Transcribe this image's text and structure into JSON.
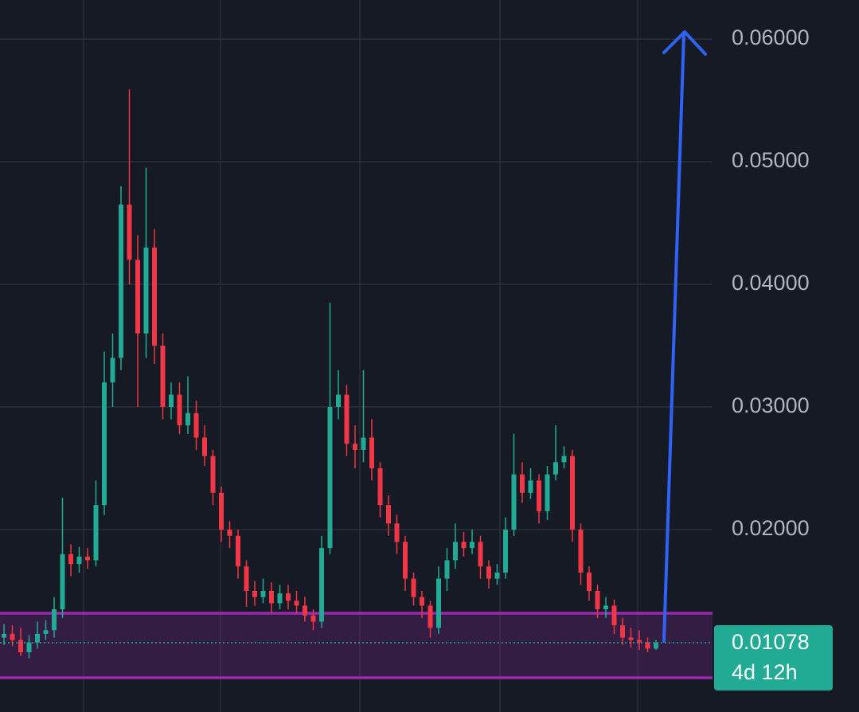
{
  "chart_data": {
    "type": "candlestick",
    "open": [
      0.0112,
      0.0115,
      0.011,
      0.01,
      0.0108,
      0.0115,
      0.0118,
      0.0135,
      0.018,
      0.0172,
      0.0178,
      0.0175,
      0.022,
      0.032,
      0.034,
      0.0465,
      0.042,
      0.036,
      0.043,
      0.035,
      0.03,
      0.031,
      0.0285,
      0.0295,
      0.0275,
      0.026,
      0.023,
      0.02,
      0.0195,
      0.017,
      0.015,
      0.0145,
      0.015,
      0.014,
      0.0148,
      0.0142,
      0.0138,
      0.013,
      0.0125,
      0.0185,
      0.03,
      0.031,
      0.027,
      0.0265,
      0.0275,
      0.025,
      0.022,
      0.0205,
      0.019,
      0.016,
      0.0145,
      0.0138,
      0.012,
      0.016,
      0.0175,
      0.019,
      0.0185,
      0.019,
      0.017,
      0.016,
      0.0165,
      0.02,
      0.0245,
      0.023,
      0.024,
      0.0215,
      0.0245,
      0.0255,
      0.026,
      0.02,
      0.0165,
      0.015,
      0.0135,
      0.0138,
      0.0122,
      0.0112,
      0.011,
      0.0108,
      0.0103
    ],
    "high": [
      0.0123,
      0.0122,
      0.012,
      0.0114,
      0.0125,
      0.0126,
      0.0145,
      0.0226,
      0.0188,
      0.0186,
      0.0185,
      0.024,
      0.0345,
      0.036,
      0.048,
      0.0559,
      0.044,
      0.0495,
      0.0445,
      0.036,
      0.032,
      0.032,
      0.0325,
      0.0305,
      0.0285,
      0.0265,
      0.0235,
      0.0207,
      0.02,
      0.0175,
      0.0158,
      0.016,
      0.0157,
      0.0155,
      0.0155,
      0.015,
      0.0145,
      0.0135,
      0.0195,
      0.0385,
      0.033,
      0.0318,
      0.0285,
      0.033,
      0.029,
      0.0255,
      0.0228,
      0.0212,
      0.0195,
      0.0165,
      0.015,
      0.0142,
      0.017,
      0.0185,
      0.0205,
      0.0198,
      0.02,
      0.0195,
      0.0175,
      0.0172,
      0.021,
      0.0278,
      0.0255,
      0.025,
      0.0245,
      0.0252,
      0.0285,
      0.0268,
      0.0265,
      0.0205,
      0.017,
      0.0155,
      0.0145,
      0.0143,
      0.0128,
      0.012,
      0.0118,
      0.0112,
      0.011
    ],
    "low": [
      0.0106,
      0.0105,
      0.0097,
      0.0095,
      0.0103,
      0.011,
      0.0112,
      0.0128,
      0.0162,
      0.0165,
      0.0168,
      0.017,
      0.0212,
      0.03,
      0.033,
      0.04,
      0.03,
      0.034,
      0.0335,
      0.029,
      0.029,
      0.0278,
      0.0278,
      0.0265,
      0.0252,
      0.022,
      0.019,
      0.0185,
      0.016,
      0.0137,
      0.0138,
      0.014,
      0.0132,
      0.0135,
      0.0135,
      0.0132,
      0.0125,
      0.0118,
      0.012,
      0.018,
      0.029,
      0.026,
      0.025,
      0.0255,
      0.024,
      0.021,
      0.0195,
      0.018,
      0.015,
      0.0138,
      0.0128,
      0.0112,
      0.0115,
      0.015,
      0.0168,
      0.0178,
      0.018,
      0.016,
      0.0152,
      0.0155,
      0.016,
      0.0195,
      0.0222,
      0.0225,
      0.0205,
      0.0208,
      0.024,
      0.025,
      0.019,
      0.0155,
      0.0142,
      0.0128,
      0.0128,
      0.0115,
      0.0106,
      0.0104,
      0.0102,
      0.01,
      0.0102
    ],
    "close": [
      0.0115,
      0.011,
      0.01,
      0.0108,
      0.0115,
      0.0118,
      0.0135,
      0.018,
      0.0172,
      0.0178,
      0.0175,
      0.022,
      0.032,
      0.034,
      0.0465,
      0.042,
      0.036,
      0.043,
      0.035,
      0.03,
      0.031,
      0.0285,
      0.0295,
      0.0275,
      0.026,
      0.023,
      0.02,
      0.0195,
      0.017,
      0.015,
      0.0145,
      0.015,
      0.014,
      0.0148,
      0.0142,
      0.0138,
      0.013,
      0.0125,
      0.0185,
      0.03,
      0.031,
      0.027,
      0.0265,
      0.0275,
      0.025,
      0.022,
      0.0205,
      0.019,
      0.016,
      0.0145,
      0.0138,
      0.012,
      0.016,
      0.0175,
      0.019,
      0.0185,
      0.019,
      0.017,
      0.016,
      0.0165,
      0.02,
      0.0245,
      0.023,
      0.024,
      0.0215,
      0.0245,
      0.0255,
      0.026,
      0.02,
      0.0165,
      0.015,
      0.0135,
      0.0138,
      0.0122,
      0.0112,
      0.011,
      0.0108,
      0.0103,
      0.01078
    ],
    "up_color": "#22ab94",
    "down_color": "#f23645",
    "ylim": [
      0.00513,
      0.06318
    ],
    "yticks": [
      {
        "value": 0.02,
        "label": "0.02000"
      },
      {
        "value": 0.03,
        "label": "0.03000"
      },
      {
        "value": 0.04,
        "label": "0.04000"
      },
      {
        "value": 0.05,
        "label": "0.05000"
      },
      {
        "value": 0.06,
        "label": "0.06000"
      }
    ],
    "grid": true,
    "zone": [
      0.00792,
      0.01318
    ],
    "zone_color": "#9c27b0",
    "last_price": 0.01078,
    "countdown": "4d 12h"
  }
}
